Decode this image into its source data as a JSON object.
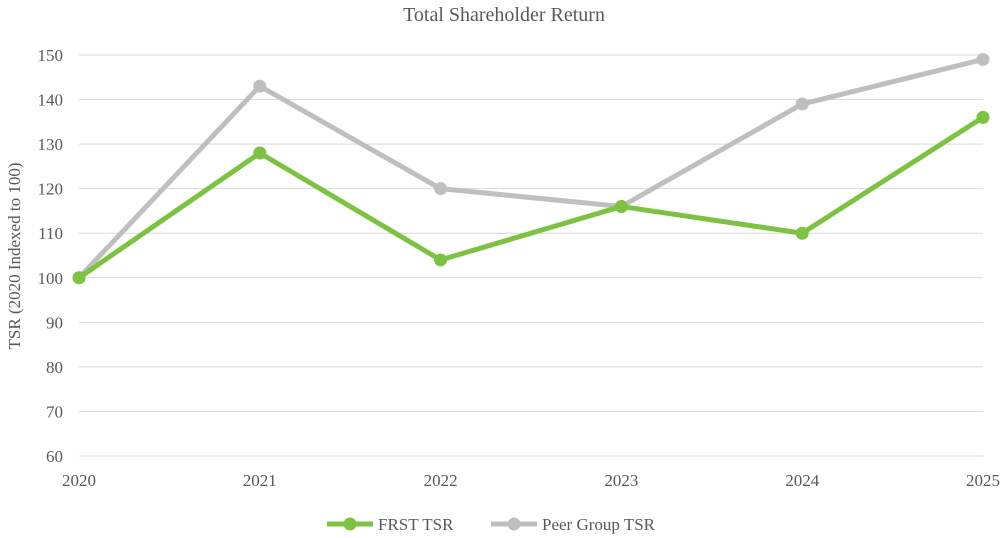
{
  "chart_data": {
    "type": "line",
    "title": "Total Shareholder Return",
    "xlabel": "",
    "ylabel": "TSR (2020 Indexed to 100)",
    "x": [
      "2020",
      "2021",
      "2022",
      "2023",
      "2024",
      "2025"
    ],
    "ylim": [
      60,
      150
    ],
    "yticks": [
      60,
      70,
      80,
      90,
      100,
      110,
      120,
      130,
      140,
      150
    ],
    "grid": true,
    "legend_position": "bottom",
    "series": [
      {
        "name": "Peer Group TSR",
        "color": "#bfbfbf",
        "values": [
          100,
          143,
          120,
          116,
          139,
          149
        ]
      },
      {
        "name": "FRST TSR",
        "color": "#7dc242",
        "values": [
          100,
          128,
          104,
          116,
          110,
          136
        ]
      }
    ],
    "legend_order": [
      "FRST TSR",
      "Peer Group TSR"
    ]
  }
}
